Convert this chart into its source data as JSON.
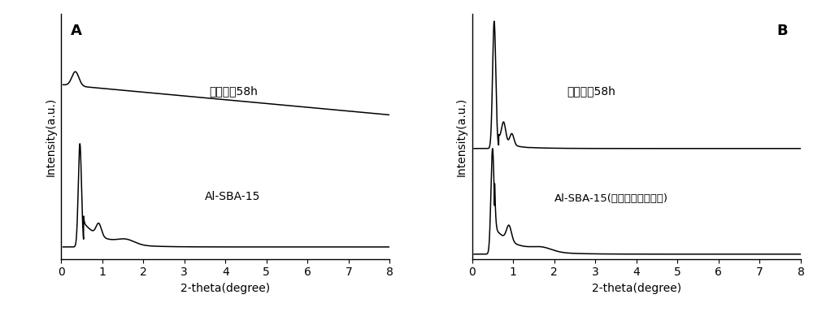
{
  "panel_A_label": "A",
  "panel_B_label": "B",
  "xlabel": "2-theta(degree)",
  "ylabel": "Intensity(a.u.)",
  "xlim": [
    0,
    8
  ],
  "xticks": [
    0,
    1,
    2,
    3,
    4,
    5,
    6,
    7,
    8
  ],
  "line_color": "#000000",
  "background_color": "#ffffff",
  "label_A_top": "水热处疇58h",
  "label_A_bottom": "Al-SBA-15",
  "label_B_top": "水热处疇58h",
  "label_B_bottom": "Al-SBA-15(加氟碳表面活性剂)",
  "font_size_label": 10,
  "font_size_axis": 10,
  "font_size_panel": 13
}
